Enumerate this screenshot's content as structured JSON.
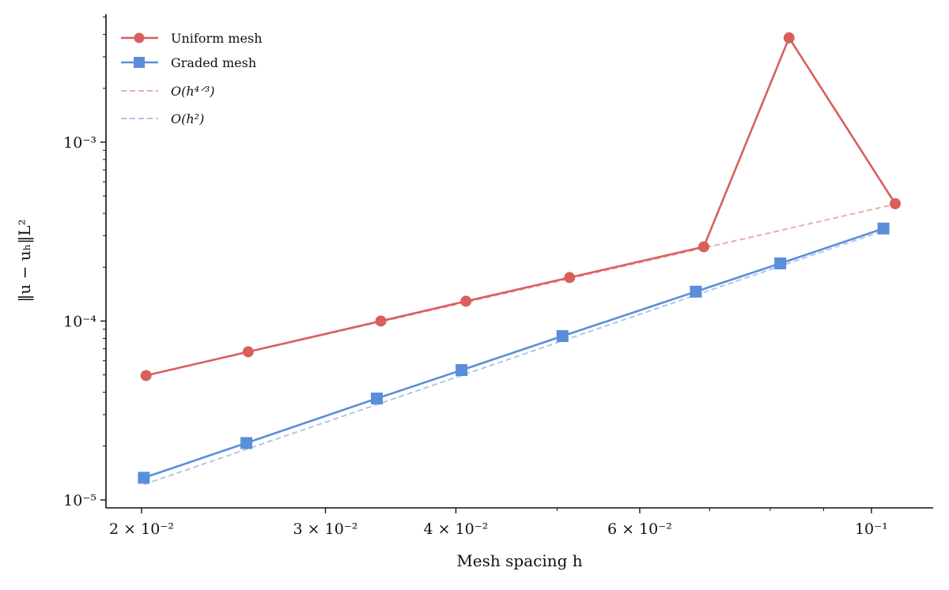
{
  "chart_data": {
    "type": "line",
    "title": "",
    "xlabel": "Mesh spacing h",
    "ylabel": "‖u − uₕ‖L²",
    "xscale": "log",
    "yscale": "log",
    "xlim": [
      0.01849,
      0.1146
    ],
    "ylim": [
      9.03e-06,
      0.00519
    ],
    "grid": false,
    "legend_position": "top-left",
    "xticks": [
      {
        "value": 0.02,
        "label": "2 × 10⁻²"
      },
      {
        "value": 0.03,
        "label": "3 × 10⁻²"
      },
      {
        "value": 0.04,
        "label": "4 × 10⁻²"
      },
      {
        "value": 0.06,
        "label": "6 × 10⁻²"
      },
      {
        "value": 0.1,
        "label": "10⁻¹"
      }
    ],
    "xminor": [
      0.05,
      0.07,
      0.08,
      0.09
    ],
    "yticks": [
      {
        "value": 1e-05,
        "label": "10⁻⁵"
      },
      {
        "value": 0.0001,
        "label": "10⁻⁴"
      },
      {
        "value": 0.001,
        "label": "10⁻³"
      }
    ],
    "series": [
      {
        "name": "Uniform mesh",
        "color": "#d95f5d",
        "marker": "circle",
        "style": "solid",
        "x": [
          0.0202,
          0.0253,
          0.0339,
          0.0409,
          0.0514,
          0.0691,
          0.0834,
          0.1054
        ],
        "y": [
          4.96e-05,
          6.73e-05,
          0.0001,
          0.000129,
          0.000175,
          0.00026,
          0.00383,
          0.000453
        ]
      },
      {
        "name": "Graded mesh",
        "color": "#5b8ed8",
        "marker": "square",
        "style": "solid",
        "x": [
          0.0201,
          0.0252,
          0.0336,
          0.0405,
          0.0506,
          0.0679,
          0.0818,
          0.1027
        ],
        "y": [
          1.33e-05,
          2.08e-05,
          3.69e-05,
          5.32e-05,
          8.24e-05,
          0.000146,
          0.00021,
          0.000329
        ]
      },
      {
        "name": "O(h^{4/3})",
        "color": "#ebaeae",
        "marker": "none",
        "style": "dashed",
        "x": [
          0.0202,
          0.1054
        ],
        "y": [
          4.96e-05,
          0.00045
        ]
      },
      {
        "name": "O(h^2)",
        "color": "#aec6ee",
        "marker": "none",
        "style": "dashed",
        "x": [
          0.0201,
          0.1027
        ],
        "y": [
          1.22e-05,
          0.00032
        ]
      }
    ],
    "legend": [
      "Uniform mesh",
      "Graded mesh",
      "O(h⁴ᐟ³)",
      "O(h²)"
    ]
  }
}
